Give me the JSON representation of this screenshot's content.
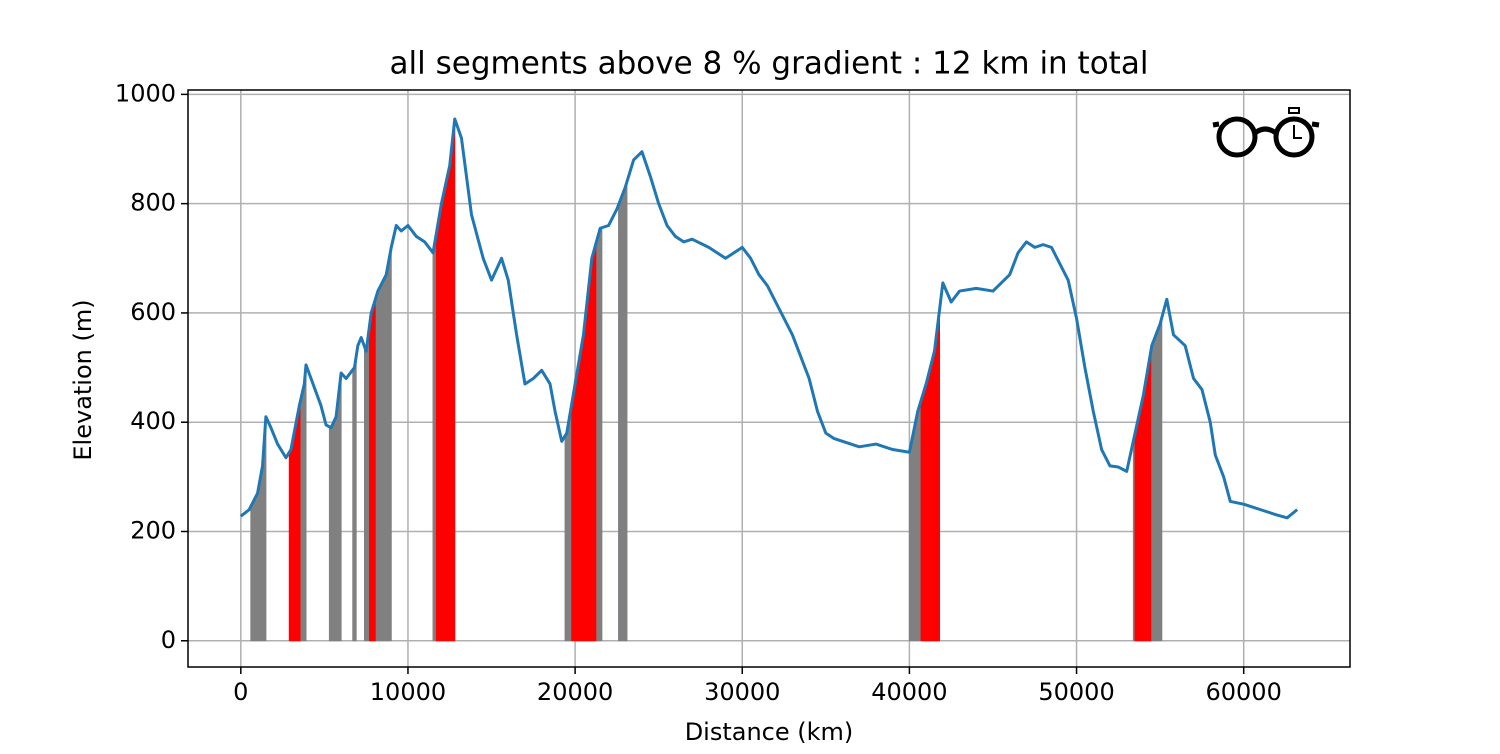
{
  "chart_data": {
    "type": "line",
    "title": "all segments above 8 % gradient : 12 km in total",
    "xlabel": "Distance (km)",
    "ylabel": "Elevation (m)",
    "color": "#1f77b4",
    "grid": true,
    "xlim": [
      -3160,
      66360
    ],
    "ylim": [
      -48,
      1008
    ],
    "xticks": [
      0,
      10000,
      20000,
      30000,
      40000,
      50000,
      60000
    ],
    "yticks": [
      0,
      200,
      400,
      600,
      800,
      1000
    ],
    "x": [
      0,
      500,
      1000,
      1300,
      1500,
      1800,
      2200,
      2700,
      3000,
      3500,
      3800,
      3900,
      4200,
      4800,
      5100,
      5400,
      5700,
      6000,
      6300,
      6800,
      7000,
      7200,
      7500,
      7800,
      8200,
      8700,
      9000,
      9300,
      9600,
      10000,
      10500,
      11000,
      11500,
      12000,
      12500,
      12800,
      13200,
      13800,
      14500,
      15000,
      15600,
      16000,
      16500,
      17000,
      17500,
      18000,
      18500,
      18800,
      19200,
      19500,
      20000,
      20500,
      21000,
      21500,
      22000,
      22500,
      23000,
      23500,
      24000,
      24500,
      25000,
      25500,
      26000,
      26500,
      27000,
      28000,
      29000,
      30000,
      30500,
      31000,
      31500,
      32000,
      33000,
      34000,
      34500,
      35000,
      35500,
      36000,
      37000,
      38000,
      39000,
      40000,
      40500,
      41000,
      41500,
      42000,
      42500,
      43000,
      44000,
      45000,
      46000,
      46500,
      47000,
      47500,
      48000,
      48500,
      49500,
      50000,
      50500,
      51000,
      51500,
      52000,
      52500,
      53000,
      53500,
      54000,
      54500,
      55000,
      55400,
      55800,
      56500,
      57000,
      57500,
      58000,
      58300,
      58800,
      59200,
      60000,
      61000,
      62000,
      62600,
      63200
    ],
    "values": [
      228,
      240,
      270,
      320,
      410,
      390,
      360,
      335,
      350,
      430,
      470,
      505,
      480,
      430,
      395,
      390,
      410,
      490,
      480,
      500,
      540,
      555,
      530,
      600,
      640,
      670,
      720,
      760,
      750,
      760,
      740,
      730,
      710,
      800,
      870,
      955,
      920,
      780,
      700,
      660,
      700,
      660,
      560,
      470,
      480,
      495,
      470,
      420,
      365,
      380,
      470,
      560,
      700,
      755,
      760,
      790,
      830,
      880,
      895,
      850,
      800,
      760,
      740,
      730,
      735,
      720,
      700,
      720,
      700,
      670,
      650,
      620,
      560,
      480,
      420,
      380,
      370,
      365,
      355,
      360,
      350,
      345,
      420,
      470,
      530,
      655,
      620,
      640,
      645,
      640,
      670,
      710,
      730,
      720,
      725,
      720,
      660,
      590,
      500,
      420,
      350,
      320,
      318,
      310,
      380,
      450,
      540,
      580,
      625,
      560,
      540,
      480,
      460,
      400,
      340,
      300,
      255,
      250,
      240,
      230,
      225,
      240
    ],
    "highlights": [
      {
        "x": [
          600,
          1500
        ],
        "color": "#808080"
      },
      {
        "x": [
          2900,
          3600
        ],
        "color": "#ff0000"
      },
      {
        "x": [
          3600,
          3900
        ],
        "color": "#808080"
      },
      {
        "x": [
          5300,
          6000
        ],
        "color": "#808080"
      },
      {
        "x": [
          6700,
          6900
        ],
        "color": "#808080"
      },
      {
        "x": [
          7400,
          7700
        ],
        "color": "#808080"
      },
      {
        "x": [
          7700,
          8100
        ],
        "color": "#ff0000"
      },
      {
        "x": [
          8100,
          9000
        ],
        "color": "#808080"
      },
      {
        "x": [
          11500,
          11700
        ],
        "color": "#808080"
      },
      {
        "x": [
          11700,
          12800
        ],
        "color": "#ff0000"
      },
      {
        "x": [
          19400,
          19800
        ],
        "color": "#808080"
      },
      {
        "x": [
          19800,
          21300
        ],
        "color": "#ff0000"
      },
      {
        "x": [
          21300,
          21600
        ],
        "color": "#808080"
      },
      {
        "x": [
          22600,
          23100
        ],
        "color": "#808080"
      },
      {
        "x": [
          40000,
          40700
        ],
        "color": "#808080"
      },
      {
        "x": [
          40700,
          41800
        ],
        "color": "#ff0000"
      },
      {
        "x": [
          53400,
          53500
        ],
        "color": "#808080"
      },
      {
        "x": [
          53500,
          54500
        ],
        "color": "#ff0000"
      },
      {
        "x": [
          54500,
          55100
        ],
        "color": "#808080"
      }
    ]
  }
}
